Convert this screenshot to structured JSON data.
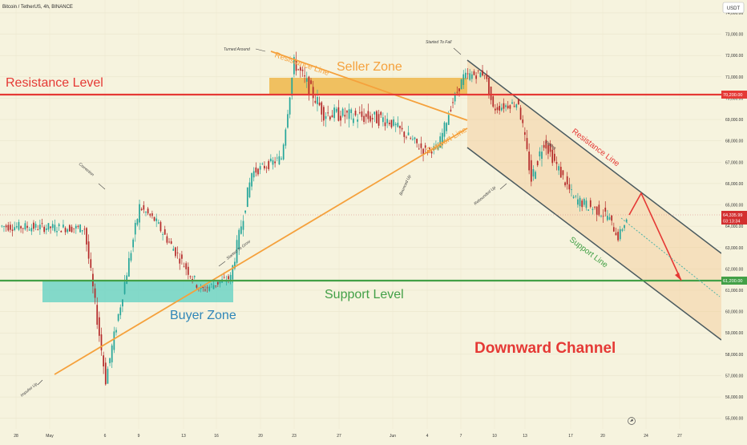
{
  "header": {
    "symbol_title": "Bitcoin / TetherUS, 4h, BINANCE",
    "currency_badge": "USDT"
  },
  "colors": {
    "background": "#f6f3de",
    "resistance_red": "#e53935",
    "support_green": "#43a047",
    "trendline_orange": "#f5a13c",
    "channel_line": "#4a5a5f",
    "seller_zone": "#eeb544",
    "buyer_zone": "#6fd4c6",
    "candle_up": "#26a69a",
    "candle_down": "#b52a2a"
  },
  "chart_data": {
    "type": "candlestick",
    "title": "",
    "xlabel": "",
    "ylabel": "",
    "ylim": [
      54500,
      74600
    ],
    "price_axis_ticks": [
      "74,000.00",
      "73,000.00",
      "72,000.00",
      "71,000.00",
      "70,000.00",
      "69,000.00",
      "68,000.00",
      "67,000.00",
      "66,000.00",
      "65,000.00",
      "64,000.00",
      "63,000.00",
      "62,000.00",
      "61,000.00",
      "60,000.00",
      "59,000.00",
      "58,000.00",
      "57,000.00",
      "56,000.00",
      "55,000.00"
    ],
    "time_axis_ticks": [
      "28",
      "May",
      "6",
      "9",
      "13",
      "16",
      "20",
      "23",
      "27",
      "Jun",
      "4",
      "7",
      "10",
      "13",
      "17",
      "20",
      "24",
      "27"
    ],
    "levels": {
      "resistance": {
        "value": 70200,
        "label": "Resistance Level",
        "axis_label": "70,200.00"
      },
      "support": {
        "value": 61200,
        "label": "Support Level",
        "axis_label": "61,200.00"
      },
      "current": {
        "value": 64335.99,
        "axis_label": "64,335.99",
        "countdown": "03:13:34"
      }
    },
    "zones": {
      "seller": {
        "label": "Seller Zone",
        "low": 70200,
        "high": 71000
      },
      "buyer": {
        "label": "Buyer Zone",
        "low": 60200,
        "high": 61200
      }
    },
    "text_labels": {
      "downward_channel": "Downward Channel",
      "channel_resistance": "Resistance Line",
      "channel_support": "Support Line",
      "triangle_resistance": "Resistance Line",
      "triangle_support": "Support Line"
    },
    "annotations": [
      "Turned Around",
      "Started To Fall",
      "Correction",
      "Started To Grow",
      "Impulse Up",
      "Bounced Up",
      "Rebounded Up",
      "Falling"
    ],
    "segments": [
      {
        "bars": 40,
        "start": 64000,
        "end": 63900,
        "amp": 450
      },
      {
        "bars": 10,
        "start": 63900,
        "end": 56800,
        "amp": 600
      },
      {
        "bars": 16,
        "start": 56800,
        "end": 64900,
        "amp": 600
      },
      {
        "bars": 7,
        "start": 64900,
        "end": 64300,
        "amp": 400
      },
      {
        "bars": 22,
        "start": 64300,
        "end": 61000,
        "amp": 500
      },
      {
        "bars": 14,
        "start": 61000,
        "end": 61600,
        "amp": 400
      },
      {
        "bars": 10,
        "start": 61600,
        "end": 66500,
        "amp": 600
      },
      {
        "bars": 14,
        "start": 66500,
        "end": 67200,
        "amp": 450
      },
      {
        "bars": 6,
        "start": 67200,
        "end": 71700,
        "amp": 500
      },
      {
        "bars": 14,
        "start": 71700,
        "end": 69300,
        "amp": 700
      },
      {
        "bars": 30,
        "start": 69300,
        "end": 69000,
        "amp": 700
      },
      {
        "bars": 18,
        "start": 69000,
        "end": 67500,
        "amp": 550
      },
      {
        "bars": 6,
        "start": 67500,
        "end": 67700,
        "amp": 400
      },
      {
        "bars": 6,
        "start": 67700,
        "end": 69600,
        "amp": 450
      },
      {
        "bars": 6,
        "start": 69600,
        "end": 71000,
        "amp": 450
      },
      {
        "bars": 10,
        "start": 71000,
        "end": 71200,
        "amp": 450
      },
      {
        "bars": 4,
        "start": 71200,
        "end": 69500,
        "amp": 400
      },
      {
        "bars": 12,
        "start": 69500,
        "end": 69800,
        "amp": 400
      },
      {
        "bars": 6,
        "start": 69800,
        "end": 66200,
        "amp": 650
      },
      {
        "bars": 6,
        "start": 66200,
        "end": 68000,
        "amp": 650
      },
      {
        "bars": 14,
        "start": 68000,
        "end": 65300,
        "amp": 550
      },
      {
        "bars": 16,
        "start": 65300,
        "end": 64500,
        "amp": 550
      },
      {
        "bars": 5,
        "start": 64500,
        "end": 63500,
        "amp": 450
      },
      {
        "bars": 4,
        "start": 63500,
        "end": 64336,
        "amp": 350
      }
    ]
  }
}
